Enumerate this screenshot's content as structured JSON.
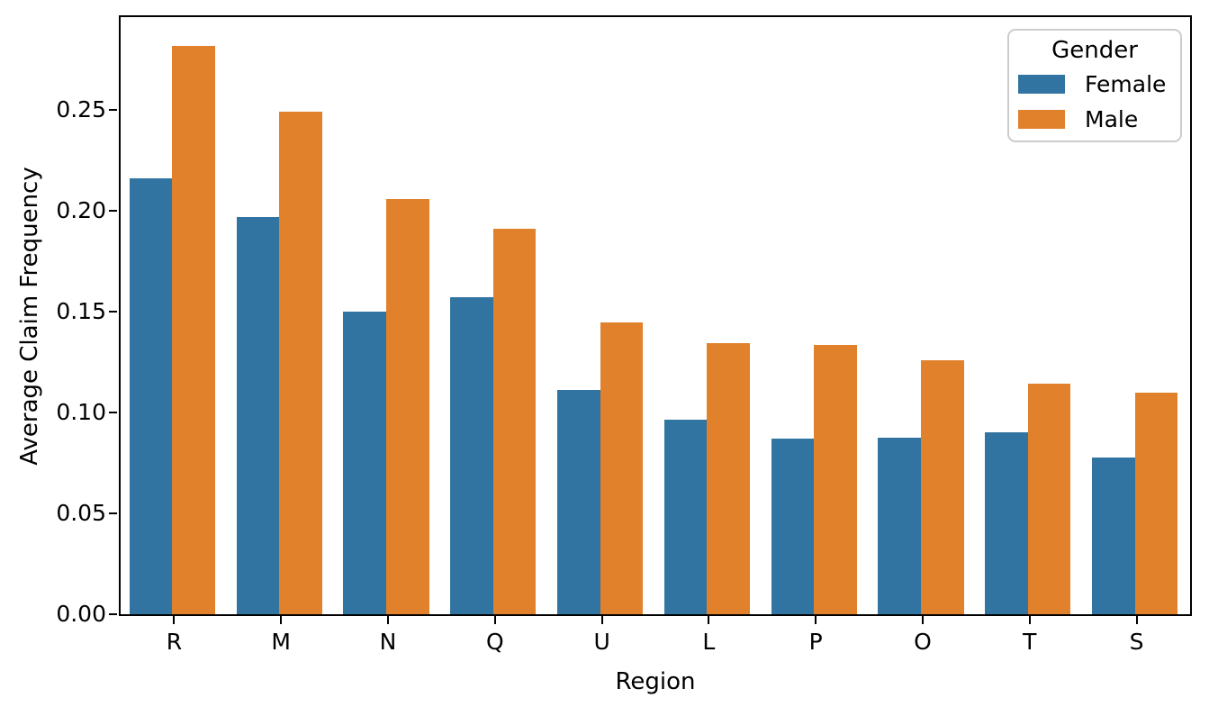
{
  "chart_data": {
    "type": "bar",
    "title": "",
    "xlabel": "Region",
    "ylabel": "Average Claim Frequency",
    "categories": [
      "R",
      "M",
      "N",
      "Q",
      "U",
      "L",
      "P",
      "O",
      "T",
      "S"
    ],
    "series": [
      {
        "name": "Female",
        "color": "#3274a1",
        "values": [
          0.216,
          0.197,
          0.15,
          0.157,
          0.111,
          0.0965,
          0.087,
          0.0875,
          0.09,
          0.0775
        ]
      },
      {
        "name": "Male",
        "color": "#e1812c",
        "values": [
          0.282,
          0.249,
          0.206,
          0.191,
          0.1445,
          0.1345,
          0.1335,
          0.126,
          0.1145,
          0.11
        ]
      }
    ],
    "ylim": [
      0,
      0.2961
    ],
    "yticks": [
      "0.00",
      "0.05",
      "0.10",
      "0.15",
      "0.20",
      "0.25"
    ],
    "legend_title": "Gender",
    "legend_position": "upper right",
    "grid": false,
    "axis_color": "#000000",
    "legend_border_color": "#cccccc"
  }
}
